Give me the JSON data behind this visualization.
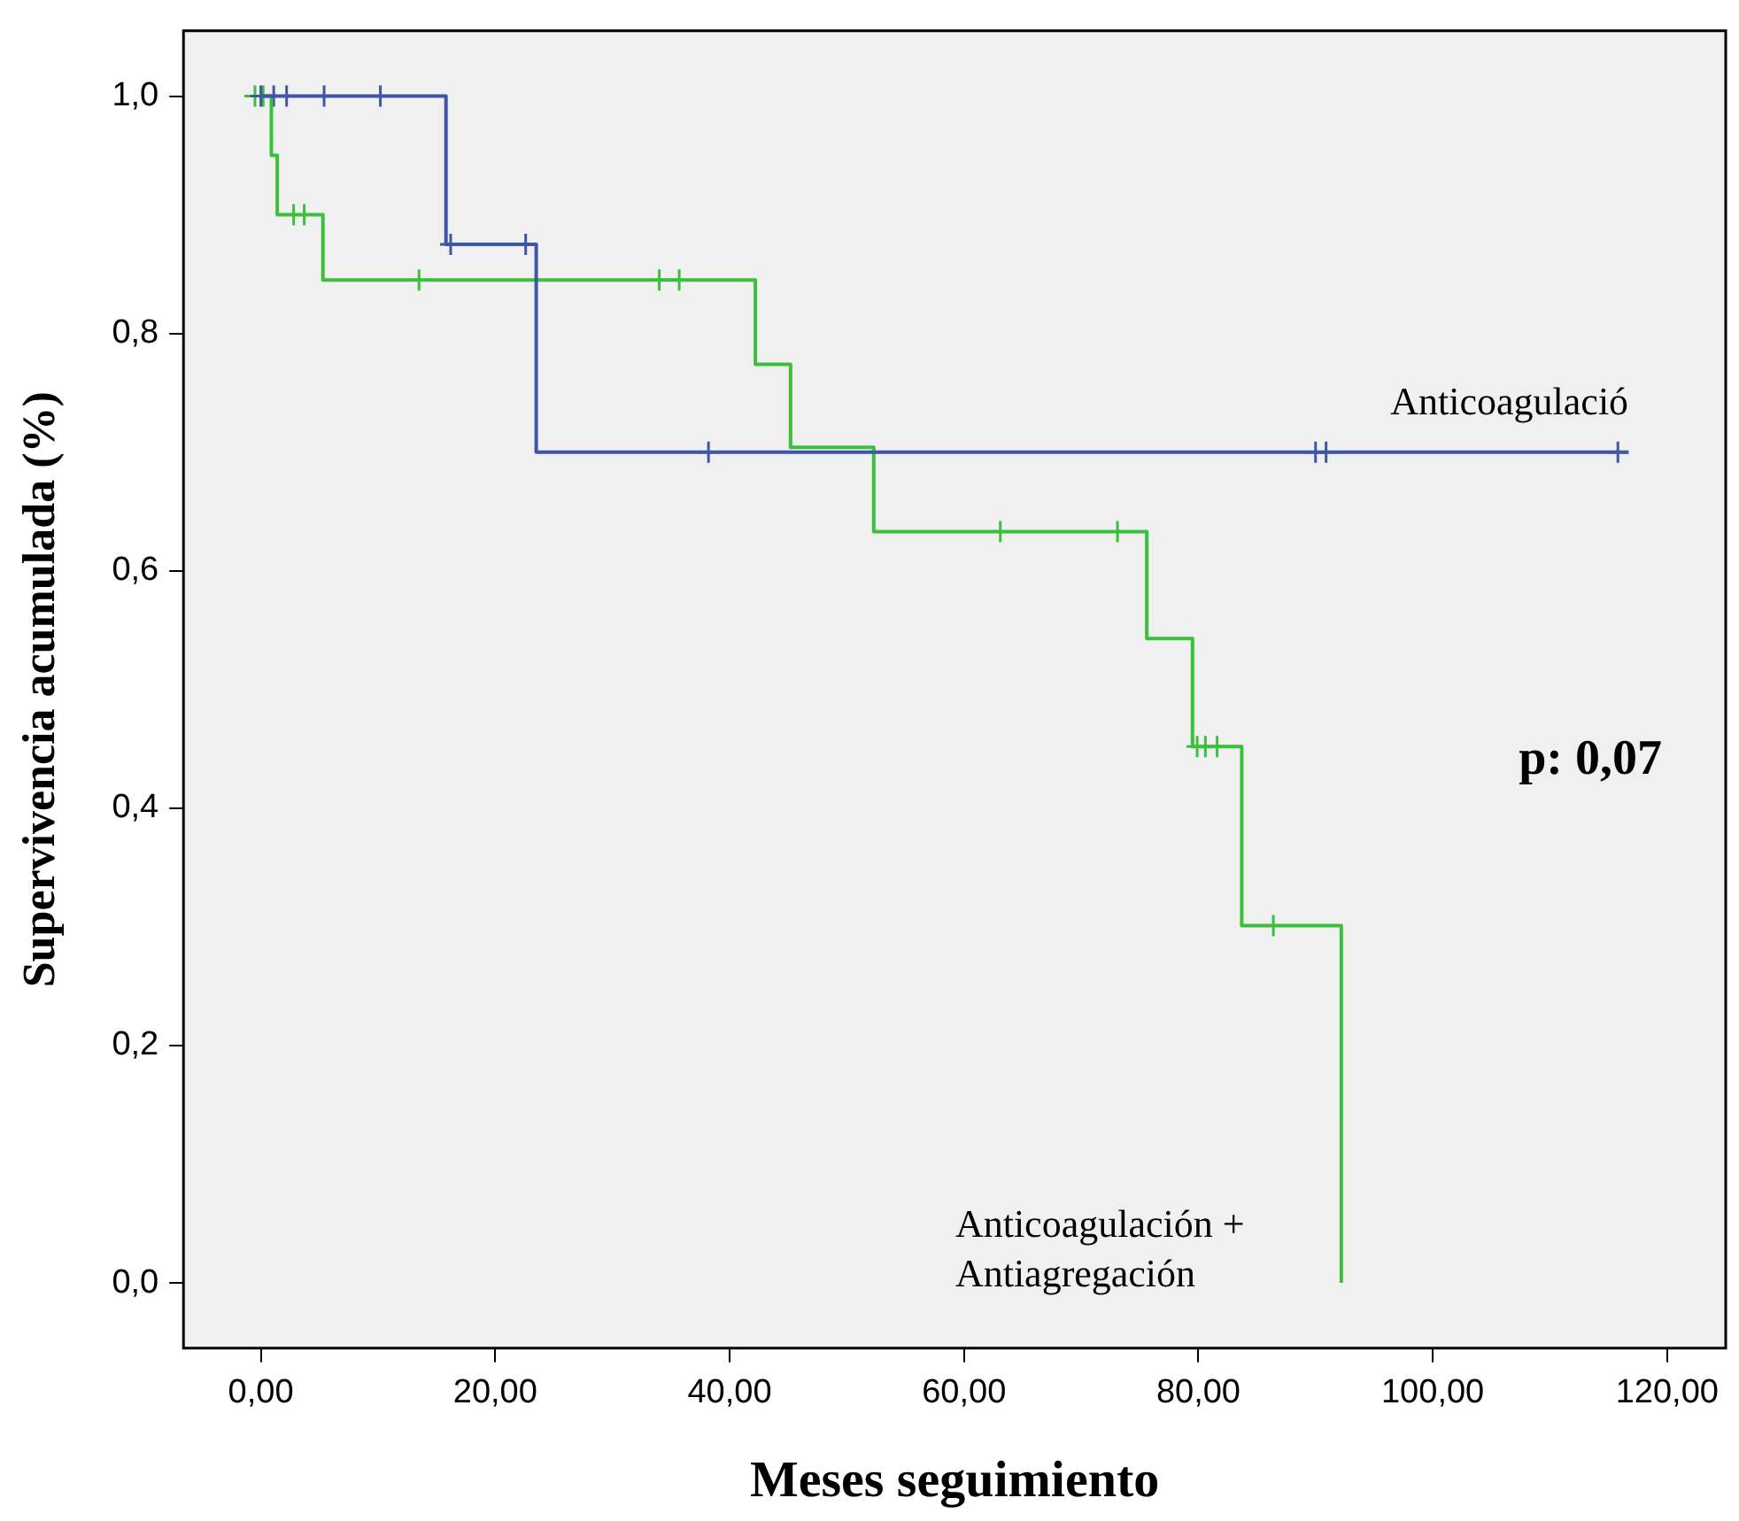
{
  "chart_data": {
    "type": "step",
    "xlabel": "Meses seguimiento",
    "ylabel": "Supervivencia acumulada (%)",
    "xlim": [
      -6.6,
      125
    ],
    "xticks": [
      {
        "value": 0,
        "label": "0,00"
      },
      {
        "value": 20,
        "label": "20,00"
      },
      {
        "value": 40,
        "label": "40,00"
      },
      {
        "value": 60,
        "label": "60,00"
      },
      {
        "value": 80,
        "label": "80,00"
      },
      {
        "value": 100,
        "label": "100,00"
      },
      {
        "value": 120,
        "label": "120,00"
      }
    ],
    "ylim": [
      -0.055,
      1.055
    ],
    "yticks": [
      {
        "value": 0,
        "label": "0,0"
      },
      {
        "value": 0.2,
        "label": "0,2"
      },
      {
        "value": 0.4,
        "label": "0,4"
      },
      {
        "value": 0.6,
        "label": "0,6"
      },
      {
        "value": 0.8,
        "label": "0,8"
      },
      {
        "value": 1,
        "label": "1,0"
      }
    ],
    "grid": false,
    "legend": false,
    "series": [
      {
        "name": "Anticoagulació",
        "color": "#3f55a5",
        "type": "step",
        "x": [
          0,
          15.8,
          23.5,
          116.7
        ],
        "values": [
          1,
          0.875,
          0.7,
          0.7
        ]
      },
      {
        "name": "Anticoagulación + Antiagregación",
        "color": "#3cbf3c",
        "type": "step",
        "x": [
          0,
          0.9,
          1.4,
          5.3,
          42.2,
          45.2,
          52.3,
          75.6,
          79.5,
          83.7,
          92.2
        ],
        "values": [
          1,
          0.95,
          0.9,
          0.845,
          0.774,
          0.704,
          0.633,
          0.543,
          0.452,
          0.301,
          0
        ]
      },
      {
        "color": "#3f55a5",
        "type": "scatter",
        "marker": "cross",
        "x": [
          0,
          1.1,
          2.2,
          5.4,
          10.2,
          16.2,
          22.6,
          38.2,
          90,
          90.9,
          115.8
        ],
        "values": [
          1,
          1,
          1,
          1,
          1,
          0.875,
          0.875,
          0.7,
          0.7,
          0.7,
          0.7
        ]
      },
      {
        "color": "#3cbf3c",
        "type": "scatter",
        "marker": "cross",
        "x": [
          -0.5,
          0.2,
          2.8,
          3.7,
          13.5,
          34,
          35.7,
          63.1,
          73.1,
          79.9,
          80.6,
          81.6,
          86.4
        ],
        "values": [
          1,
          1,
          0.9,
          0.9,
          0.845,
          0.845,
          0.845,
          0.633,
          0.633,
          0.452,
          0.452,
          0.452,
          0.301
        ]
      }
    ],
    "annotations": [
      "p: 0,07"
    ]
  }
}
